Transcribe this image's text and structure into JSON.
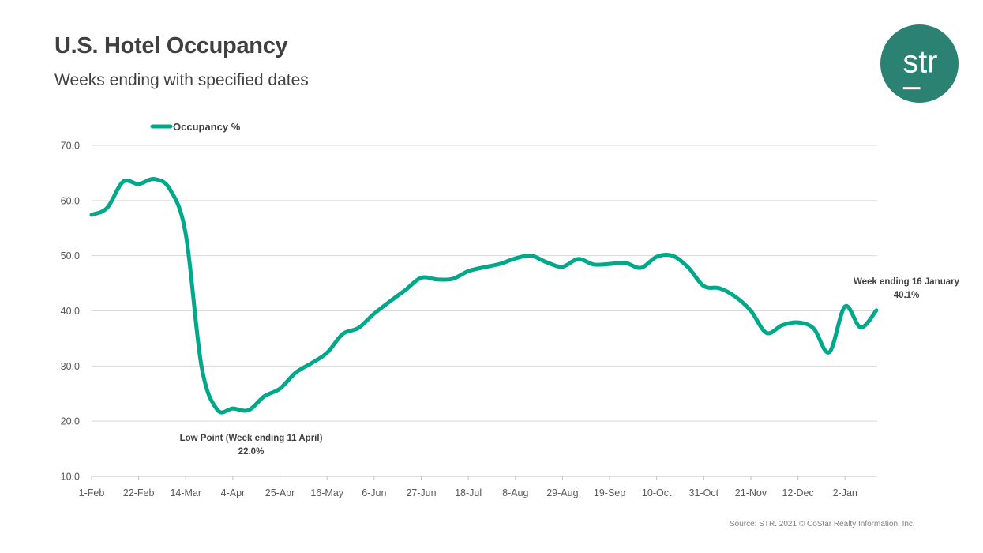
{
  "header": {
    "title": "U.S. Hotel Occupancy",
    "subtitle": "Weeks ending with specified dates"
  },
  "logo": {
    "text": "str",
    "color": "#2b8272"
  },
  "source": "Source: STR. 2021 © CoStar Realty Information, Inc.",
  "chart_data": {
    "type": "line",
    "title": "",
    "xlabel": "",
    "ylabel": "",
    "ylim": [
      10,
      70
    ],
    "yticks": [
      "10.0",
      "20.0",
      "30.0",
      "40.0",
      "50.0",
      "60.0",
      "70.0"
    ],
    "xtick_labels": [
      "1-Feb",
      "22-Feb",
      "14-Mar",
      "4-Apr",
      "25-Apr",
      "16-May",
      "6-Jun",
      "27-Jun",
      "18-Jul",
      "8-Aug",
      "29-Aug",
      "19-Sep",
      "10-Oct",
      "31-Oct",
      "21-Nov",
      "12-Dec",
      "2-Jan"
    ],
    "grid": true,
    "legend_position": "top-left",
    "x": [
      "1-Feb",
      "8-Feb",
      "15-Feb",
      "22-Feb",
      "29-Feb",
      "7-Mar",
      "14-Mar",
      "21-Mar",
      "28-Mar",
      "4-Apr",
      "11-Apr",
      "18-Apr",
      "25-Apr",
      "2-May",
      "9-May",
      "16-May",
      "23-May",
      "30-May",
      "6-Jun",
      "13-Jun",
      "20-Jun",
      "27-Jun",
      "4-Jul",
      "11-Jul",
      "18-Jul",
      "25-Jul",
      "1-Aug",
      "8-Aug",
      "15-Aug",
      "22-Aug",
      "29-Aug",
      "5-Sep",
      "12-Sep",
      "19-Sep",
      "26-Sep",
      "3-Oct",
      "10-Oct",
      "17-Oct",
      "24-Oct",
      "31-Oct",
      "7-Nov",
      "14-Nov",
      "21-Nov",
      "28-Nov",
      "5-Dec",
      "12-Dec",
      "19-Dec",
      "26-Dec",
      "2-Jan",
      "9-Jan",
      "16-Jan"
    ],
    "series": [
      {
        "name": "Occupancy %",
        "color": "#00a88a",
        "values": [
          57.4,
          58.7,
          63.4,
          63.0,
          63.9,
          62.0,
          53.9,
          30.0,
          22.1,
          22.3,
          22.0,
          24.5,
          25.9,
          28.8,
          30.5,
          32.4,
          35.8,
          36.9,
          39.5,
          41.7,
          43.8,
          46.0,
          45.7,
          45.8,
          47.2,
          47.9,
          48.5,
          49.5,
          50.0,
          48.8,
          48.0,
          49.4,
          48.4,
          48.5,
          48.7,
          47.8,
          49.8,
          50.0,
          47.9,
          44.5,
          44.1,
          42.6,
          40.0,
          36.0,
          37.4,
          37.9,
          36.8,
          32.5,
          40.8,
          37.0,
          40.1
        ]
      }
    ],
    "annotations": [
      {
        "x": "11-Apr",
        "line1": "Low Point (Week ending 11 April)",
        "line2": "22.0%"
      },
      {
        "x": "16-Jan",
        "line1": "Week ending 16 January",
        "line2": "40.1%"
      }
    ]
  }
}
